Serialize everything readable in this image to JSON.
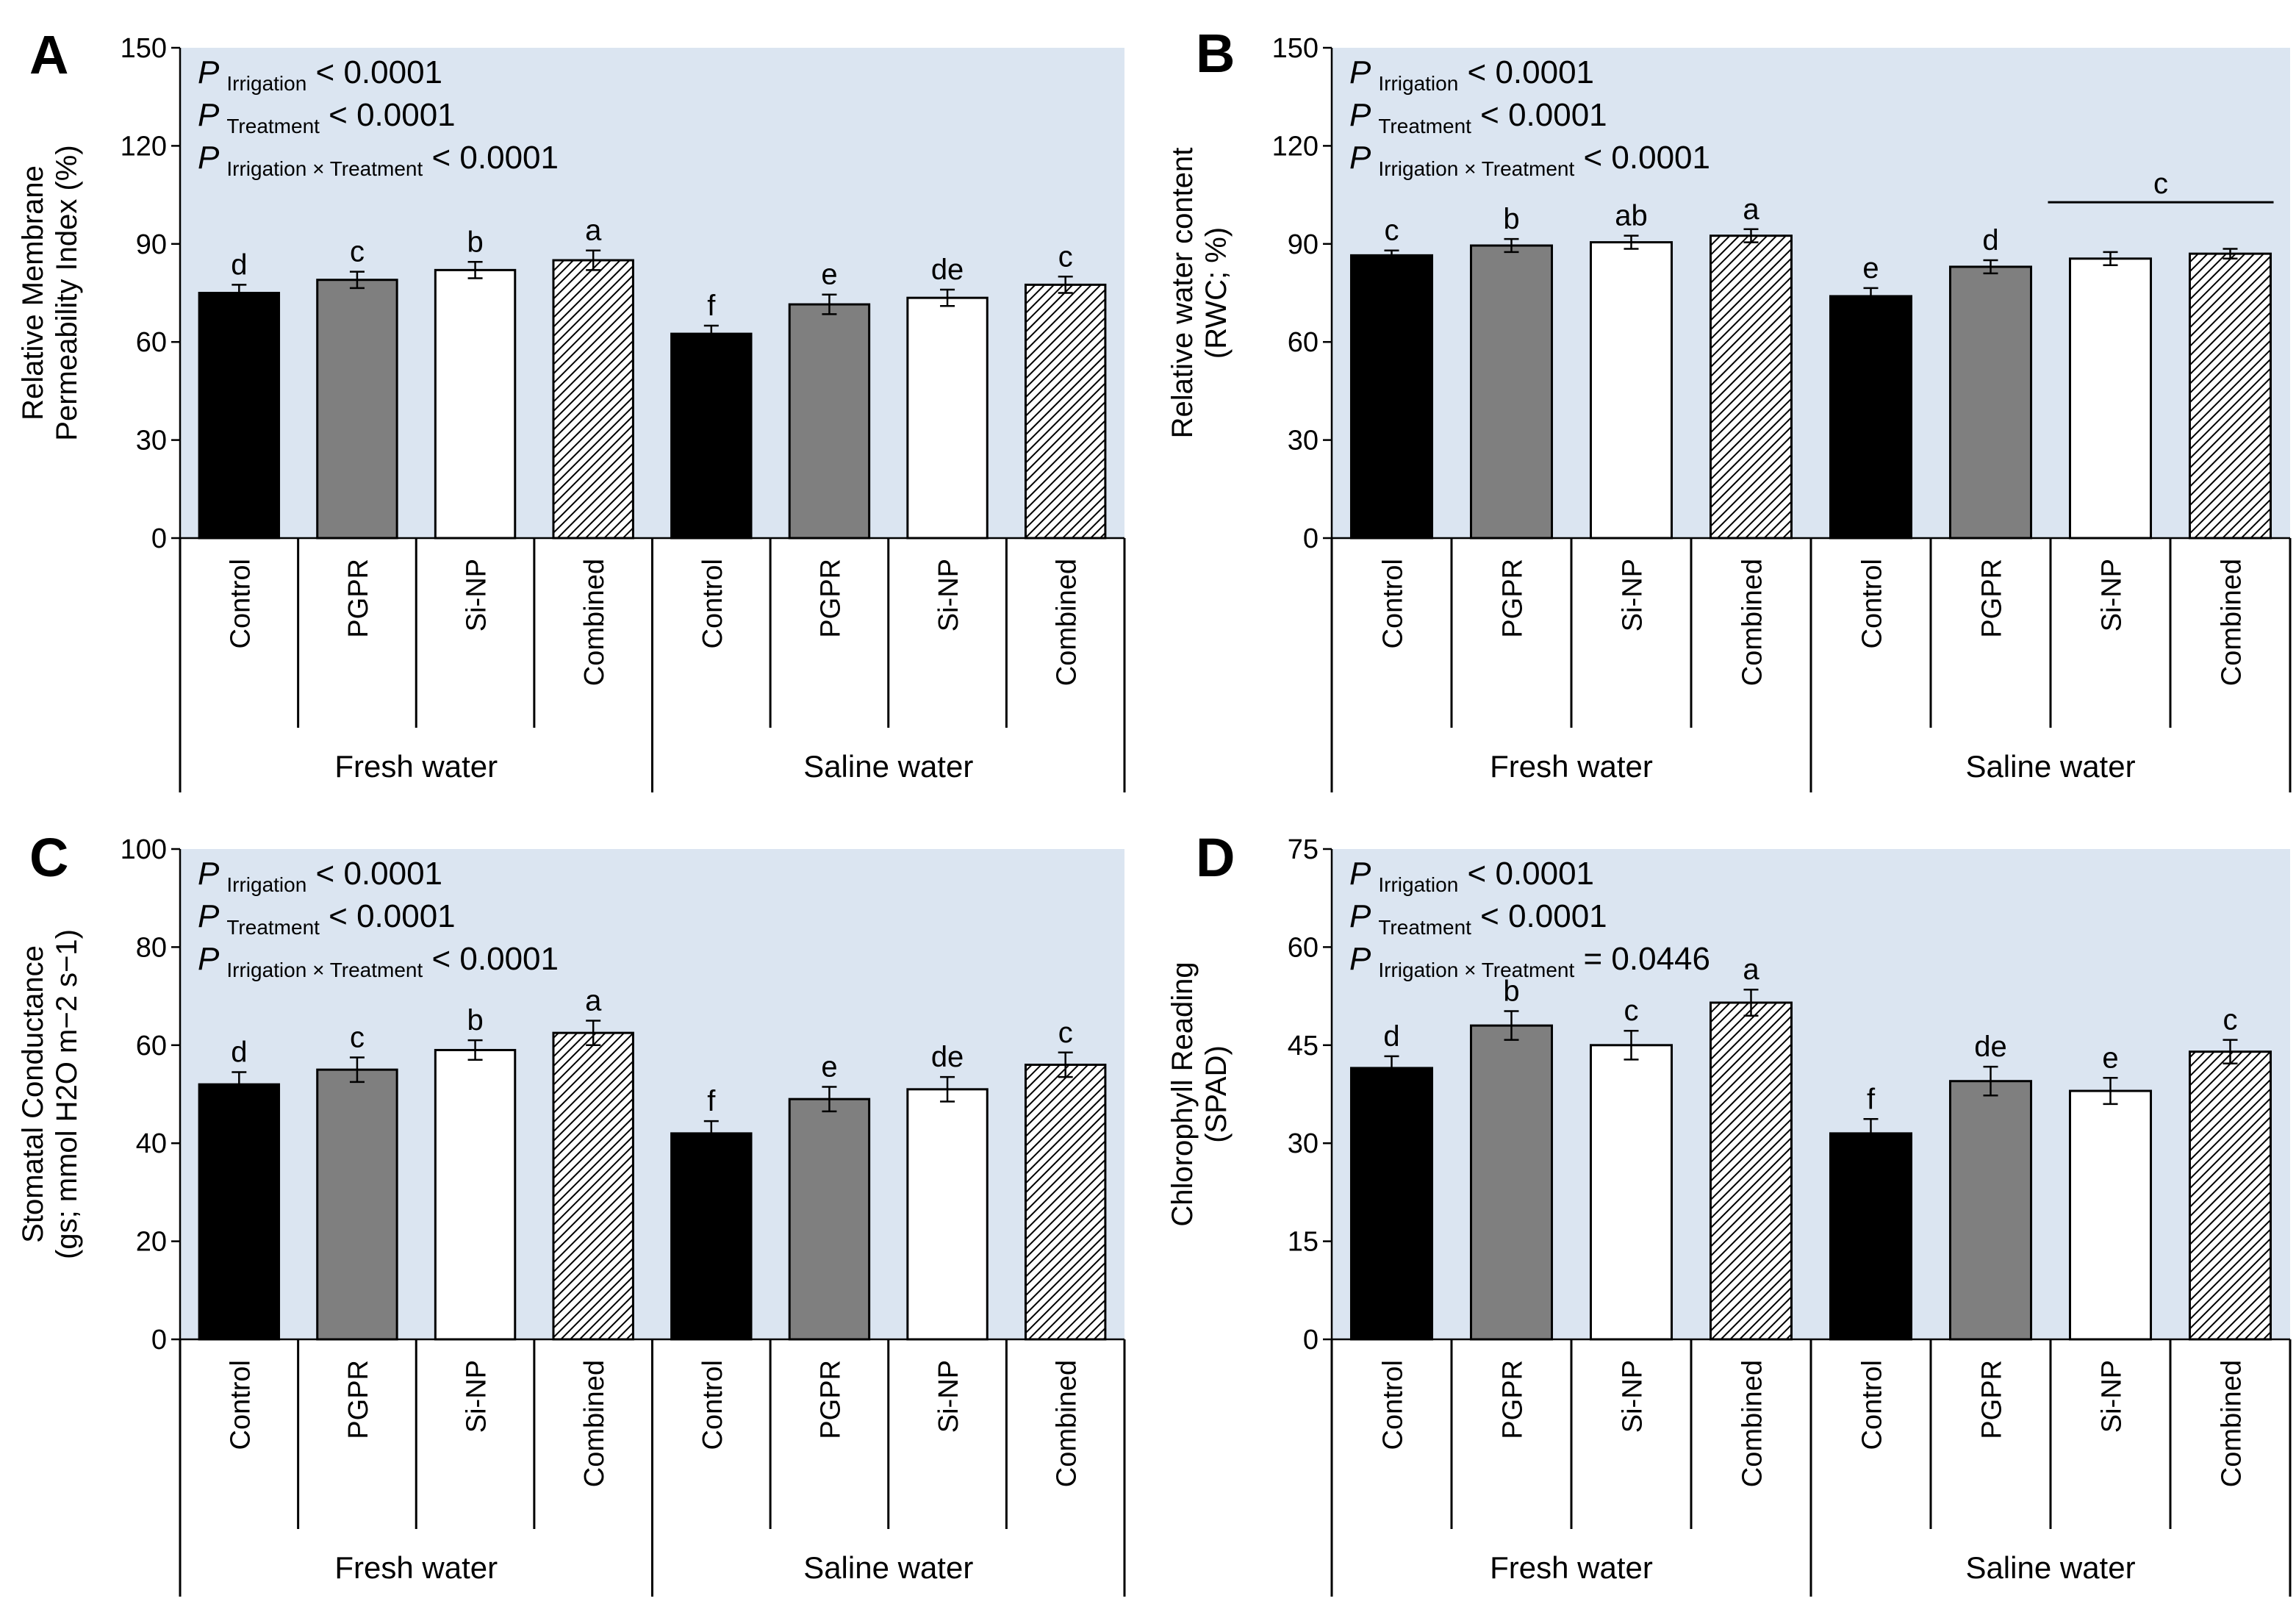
{
  "figure": {
    "categories": [
      "Control",
      "PGPR",
      "Si-NP",
      "Combined",
      "Control",
      "PGPR",
      "Si-NP",
      "Combined"
    ],
    "groups": [
      "Fresh water",
      "Saline water"
    ],
    "colors": {
      "control": "#000000",
      "pgpr": "#7f7f7f",
      "sinp": "#ffffff",
      "combined_hatch": "#000000",
      "panel_bg": "#dbe5f1"
    }
  },
  "chart_data": [
    {
      "panel_label": "A",
      "type": "bar",
      "ylabel_line1": "Relative Membrane",
      "ylabel_line2": "Permeability Index (%)",
      "ylim": [
        0,
        150
      ],
      "yticks": [
        "0",
        "30",
        "60",
        "90",
        "120",
        "150"
      ],
      "values": [
        75,
        79,
        82,
        85,
        62.5,
        71.5,
        73.5,
        77.5
      ],
      "errors": [
        2.5,
        2.5,
        2.5,
        3,
        2.5,
        3,
        2.5,
        2.5
      ],
      "letters": [
        "d",
        "c",
        "b",
        "a",
        "f",
        "e",
        "de",
        "c"
      ],
      "stats": [
        {
          "p": "P",
          "sub": "Irrigation",
          "rest": " < 0.0001"
        },
        {
          "p": "P",
          "sub": "Treatment",
          "rest": " < 0.0001"
        },
        {
          "p": "P",
          "sub": "Irrigation × Treatment",
          "rest": " < 0.0001"
        }
      ]
    },
    {
      "panel_label": "B",
      "type": "bar",
      "ylabel_line1": "Relative water content",
      "ylabel_line2": "(RWC; %)",
      "ylim": [
        0,
        150
      ],
      "yticks": [
        "0",
        "30",
        "60",
        "90",
        "120",
        "150"
      ],
      "values": [
        86.5,
        89.5,
        90.5,
        92.5,
        74,
        83,
        85.5,
        87
      ],
      "errors": [
        1.5,
        2,
        2,
        2,
        2.5,
        2,
        2,
        1.5
      ],
      "letters": [
        "c",
        "b",
        "ab",
        "a",
        "e",
        "d",
        "",
        ""
      ],
      "group_letter": "c",
      "stats": [
        {
          "p": "P",
          "sub": "Irrigation",
          "rest": " < 0.0001"
        },
        {
          "p": "P",
          "sub": "Treatment",
          "rest": " < 0.0001"
        },
        {
          "p": "P",
          "sub": "Irrigation × Treatment",
          "rest": " < 0.0001"
        }
      ]
    },
    {
      "panel_label": "C",
      "type": "bar",
      "ylabel_line1": "Stomatal Conductance",
      "ylabel_line2": "(gs; mmol H2O m−2 s−1)",
      "ylim": [
        0,
        100
      ],
      "yticks": [
        "0",
        "20",
        "40",
        "60",
        "80",
        "100"
      ],
      "values": [
        52,
        55,
        59,
        62.5,
        42,
        49,
        51,
        56
      ],
      "errors": [
        2.5,
        2.5,
        2,
        2.5,
        2.5,
        2.5,
        2.5,
        2.5
      ],
      "letters": [
        "d",
        "c",
        "b",
        "a",
        "f",
        "e",
        "de",
        "c"
      ],
      "stats": [
        {
          "p": "P",
          "sub": "Irrigation",
          "rest": " < 0.0001"
        },
        {
          "p": "P",
          "sub": "Treatment",
          "rest": " < 0.0001"
        },
        {
          "p": "P",
          "sub": "Irrigation × Treatment",
          "rest": " < 0.0001"
        }
      ]
    },
    {
      "panel_label": "D",
      "type": "bar",
      "ylabel_line1": "Chlorophyll Reading",
      "ylabel_line2": "(SPAD)",
      "ylim": [
        0,
        75
      ],
      "yticks": [
        "0",
        "15",
        "30",
        "45",
        "60",
        "75"
      ],
      "values": [
        41.5,
        48,
        45,
        51.5,
        31.5,
        39.5,
        38,
        44
      ],
      "errors": [
        1.8,
        2.2,
        2.2,
        2,
        2.2,
        2.2,
        2,
        1.8
      ],
      "letters": [
        "d",
        "b",
        "c",
        "a",
        "f",
        "de",
        "e",
        "c"
      ],
      "stats": [
        {
          "p": "P",
          "sub": "Irrigation",
          "rest": " < 0.0001"
        },
        {
          "p": "P",
          "sub": "Treatment",
          "rest": " < 0.0001"
        },
        {
          "p": "P",
          "sub": "Irrigation × Treatment",
          "rest": " = 0.0446"
        }
      ]
    }
  ]
}
